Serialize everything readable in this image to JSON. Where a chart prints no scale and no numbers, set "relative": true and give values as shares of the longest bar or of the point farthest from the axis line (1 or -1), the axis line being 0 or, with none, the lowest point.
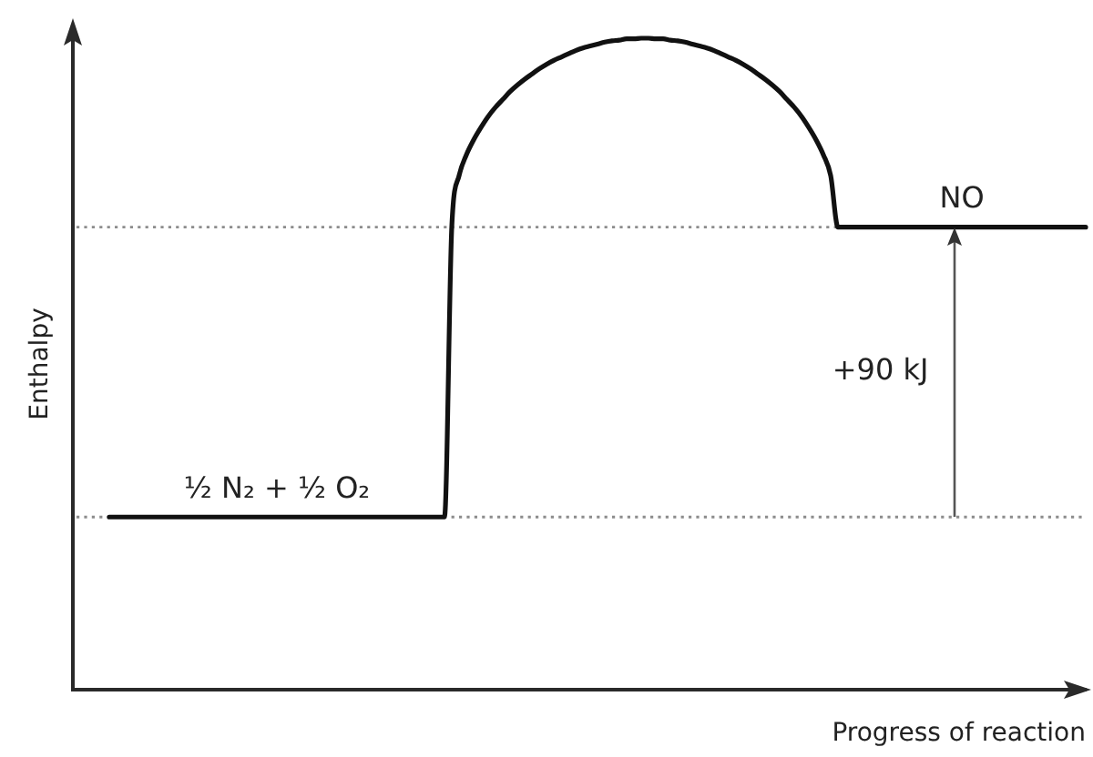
{
  "chart_data": {
    "type": "line",
    "relative": true,
    "xlabel": "Progress of reaction",
    "ylabel": "Enthalpy",
    "categories": [
      null,
      null,
      null,
      null,
      null,
      null,
      null,
      null,
      null,
      null,
      null,
      null,
      null,
      null,
      null,
      null,
      null,
      null,
      null,
      null,
      null,
      null,
      null,
      null,
      null,
      null,
      null,
      null,
      null,
      null,
      null,
      null,
      null,
      null,
      null,
      null,
      null,
      null,
      null,
      null,
      null,
      null,
      null,
      null,
      null,
      null,
      null,
      null,
      null,
      null,
      null,
      null,
      null,
      null,
      null,
      null,
      null,
      null,
      null,
      null,
      null,
      null,
      null,
      null,
      null,
      null,
      null,
      null,
      null,
      null,
      null,
      null,
      null,
      null,
      null,
      null,
      null,
      null,
      null,
      null,
      null,
      null,
      null,
      null,
      null,
      null,
      null,
      null,
      null,
      null,
      null,
      null,
      null,
      null,
      null,
      null,
      null,
      null,
      null,
      null,
      null,
      null,
      null,
      null,
      null,
      null,
      null,
      null,
      null,
      null,
      null,
      null,
      null,
      null,
      null,
      null,
      null,
      null,
      null,
      null,
      null,
      null,
      null,
      null,
      null,
      null,
      null,
      null,
      null,
      null,
      null,
      null,
      null,
      null,
      null,
      null,
      null,
      null,
      null,
      null
    ],
    "values": [
      null,
      null,
      null,
      null,
      null,
      0.265,
      0.265,
      0.265,
      0.265,
      0.265,
      0.265,
      0.265,
      0.265,
      0.265,
      0.265,
      0.265,
      0.265,
      0.265,
      0.265,
      0.265,
      0.265,
      0.265,
      0.265,
      0.265,
      0.265,
      0.265,
      0.265,
      0.265,
      0.265,
      0.265,
      0.265,
      0.265,
      0.265,
      0.265,
      0.265,
      0.265,
      0.265,
      0.265,
      0.265,
      0.265,
      0.265,
      0.265,
      0.265,
      0.265,
      0.265,
      0.265,
      0.265,
      0.265,
      0.265,
      0.265,
      0.265,
      0.265,
      0.71,
      0.789,
      0.821,
      0.844,
      0.863,
      0.88,
      0.894,
      0.906,
      0.918,
      0.928,
      0.937,
      0.945,
      0.953,
      0.96,
      0.966,
      0.971,
      0.976,
      0.981,
      0.985,
      0.988,
      0.991,
      0.994,
      0.996,
      0.997,
      0.999,
      0.999,
      1,
      1,
      0.999,
      0.999,
      0.997,
      0.996,
      0.994,
      0.991,
      0.988,
      0.985,
      0.981,
      0.976,
      0.971,
      0.966,
      0.96,
      0.953,
      0.945,
      0.937,
      0.928,
      0.918,
      0.906,
      0.894,
      0.88,
      0.863,
      0.844,
      0.821,
      0.789,
      0.71,
      0.71,
      0.71,
      0.71,
      0.71,
      0.71,
      0.71,
      0.71,
      0.71,
      0.71,
      0.71,
      0.71,
      0.71,
      0.71,
      0.71,
      0.71,
      0.71,
      0.71,
      0.71,
      0.71,
      0.71,
      0.71,
      0.71,
      0.71,
      0.71,
      0.71,
      0.71,
      0.71,
      0.71,
      0.71,
      0.71,
      0.71,
      0.71,
      0.71,
      0.71
    ],
    "color": "#111111",
    "marker": "none",
    "line_style": "solid",
    "ref_lines": [
      {
        "axis": "y",
        "value": 0.71,
        "color": "#8c8c8c",
        "line_style": "dotted"
      },
      {
        "axis": "y",
        "value": 0.265,
        "color": "#8c8c8c",
        "line_style": "dotted"
      }
    ],
    "annotations": [
      {
        "text": "½ N₂ + ½ O₂",
        "y": 0.265
      },
      {
        "text": "NO",
        "y": 0.71
      },
      "+90 kJ"
    ]
  }
}
